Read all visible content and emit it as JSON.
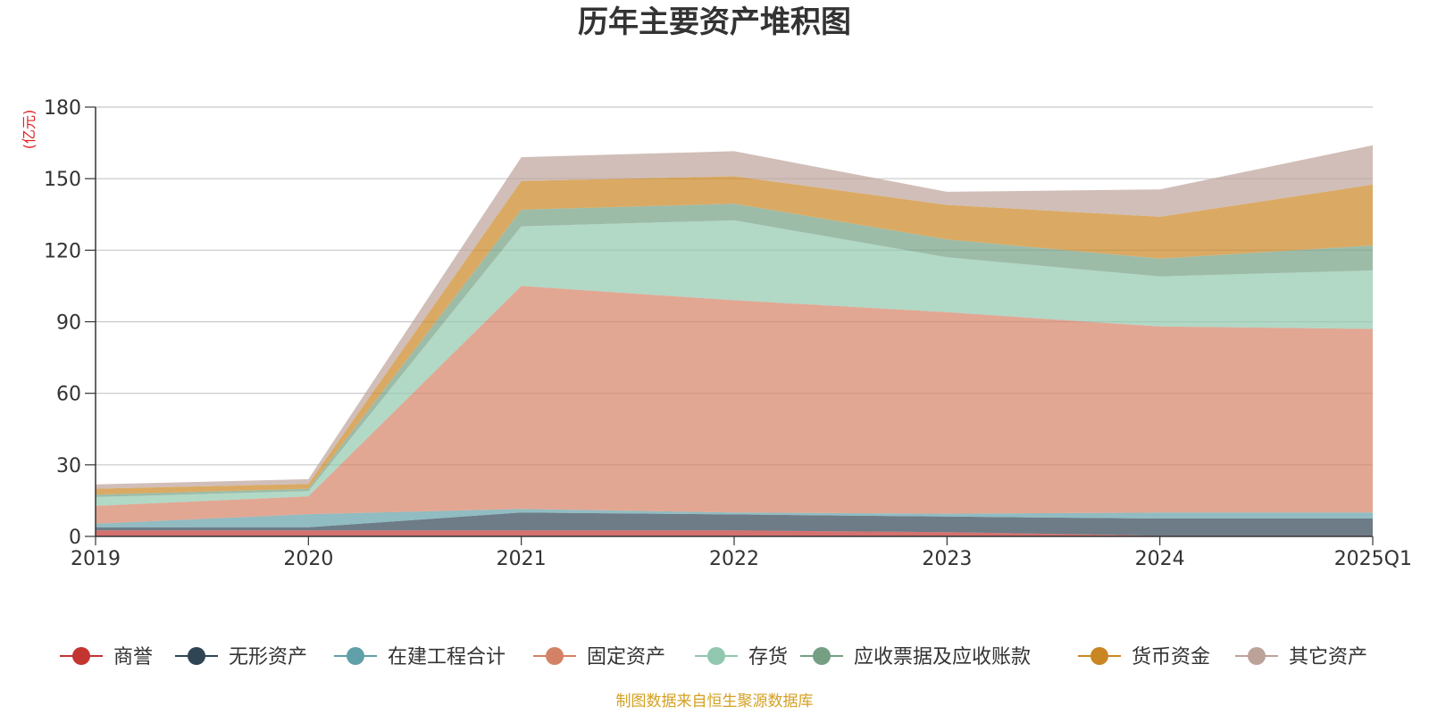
{
  "chart_data": {
    "type": "area",
    "stacked": true,
    "title": "历年主要资产堆积图",
    "ylabel": "(亿元)",
    "xlabel": "",
    "categories": [
      "2019",
      "2020",
      "2021",
      "2022",
      "2023",
      "2024",
      "2025Q1"
    ],
    "ylim": [
      0,
      180
    ],
    "yticks": [
      0,
      30,
      60,
      90,
      120,
      150,
      180
    ],
    "grid": true,
    "legend_position": "bottom",
    "series": [
      {
        "name": "商誉",
        "color": "#c23531",
        "values": [
          2.5,
          2.5,
          2.5,
          2.5,
          1.8,
          0.3,
          0.3
        ]
      },
      {
        "name": "无形资产",
        "color": "#2f4554",
        "values": [
          1.3,
          1.3,
          7.5,
          6.7,
          6.5,
          7.2,
          7.2
        ]
      },
      {
        "name": "在建工程合计",
        "color": "#61a0a8",
        "values": [
          1.5,
          5.5,
          1.5,
          0.8,
          1.2,
          2.5,
          2.5
        ]
      },
      {
        "name": "固定资产",
        "color": "#d48265",
        "values": [
          7.5,
          7.5,
          93.5,
          89.0,
          84.5,
          78.0,
          77.0
        ]
      },
      {
        "name": "存货",
        "color": "#91c7ae",
        "values": [
          3.7,
          2.2,
          25.0,
          33.5,
          23.0,
          21.0,
          24.5
        ]
      },
      {
        "name": "应收票据及应收账款",
        "color": "#749f83",
        "values": [
          1.0,
          1.0,
          7.0,
          7.0,
          7.5,
          7.5,
          10.5
        ]
      },
      {
        "name": "货币资金",
        "color": "#ca8622",
        "values": [
          2.5,
          2.0,
          12.0,
          11.5,
          14.5,
          17.5,
          25.5
        ]
      },
      {
        "name": "其它资产",
        "color": "#bda29a",
        "values": [
          1.8,
          2.0,
          10.0,
          10.5,
          5.5,
          11.5,
          16.5
        ]
      }
    ]
  },
  "footer": {
    "source": "制图数据来自恒生聚源数据库"
  }
}
